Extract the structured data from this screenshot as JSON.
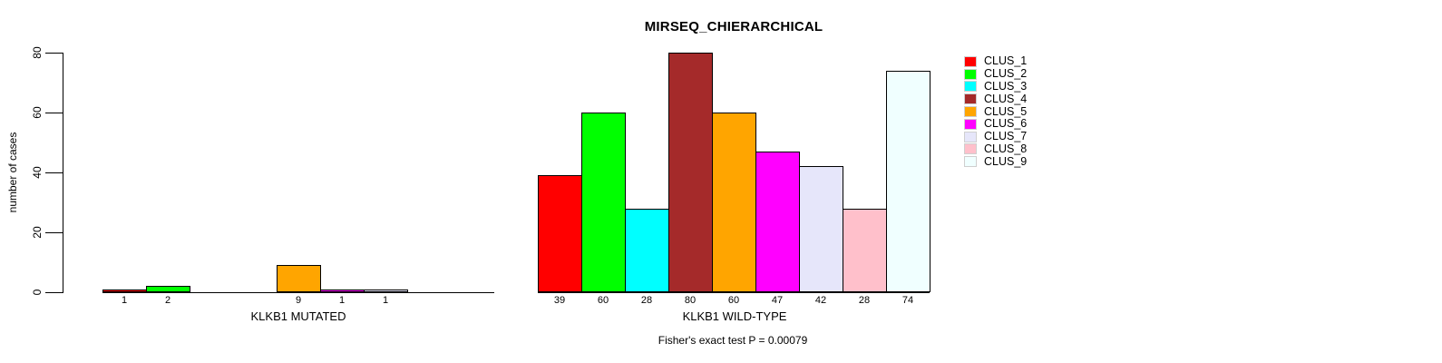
{
  "chart_data": {
    "type": "bar",
    "title": "MIRSEQ_CHIERARCHICAL",
    "ylabel": "number of cases",
    "ylim": [
      0,
      80
    ],
    "yticks": [
      0,
      20,
      40,
      60,
      80
    ],
    "grid": false,
    "legend_position": "right",
    "bar_border_color": "#000000",
    "clusters": [
      {
        "label": "CLUS_1",
        "color": "#FF0000"
      },
      {
        "label": "CLUS_2",
        "color": "#00FF00"
      },
      {
        "label": "CLUS_3",
        "color": "#00FFFF"
      },
      {
        "label": "CLUS_4",
        "color": "#A52A2A"
      },
      {
        "label": "CLUS_5",
        "color": "#FFA500"
      },
      {
        "label": "CLUS_6",
        "color": "#FF00FF"
      },
      {
        "label": "CLUS_7",
        "color": "#E6E6FA"
      },
      {
        "label": "CLUS_8",
        "color": "#FFC0CB"
      },
      {
        "label": "CLUS_9",
        "color": "#F0FFFF"
      }
    ],
    "groups": [
      {
        "label": "KLKB1 MUTATED",
        "values": [
          1,
          2,
          0,
          0,
          9,
          1,
          1,
          0,
          0
        ]
      },
      {
        "label": "KLKB1 WILD-TYPE",
        "values": [
          39,
          60,
          28,
          80,
          60,
          47,
          42,
          28,
          74
        ]
      }
    ],
    "caption": "Fisher's exact test P = 0.00079"
  }
}
